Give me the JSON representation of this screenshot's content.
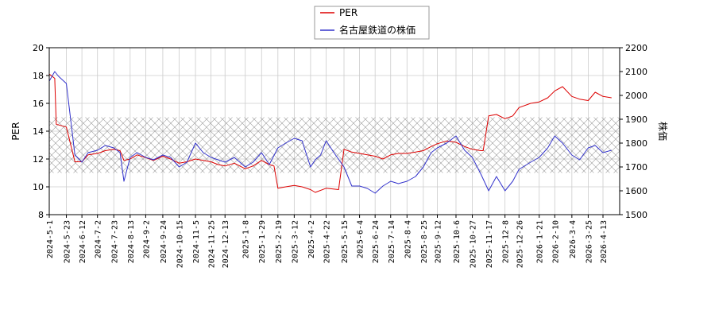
{
  "chart_data": {
    "type": "line",
    "ylabel_left": "PER",
    "ylabel_right": "株価",
    "ylim_left": [
      8,
      20
    ],
    "yticks_left": [
      8,
      10,
      12,
      14,
      16,
      18,
      20
    ],
    "ylim_right": [
      1500,
      2200
    ],
    "yticks_right": [
      1500,
      1600,
      1700,
      1800,
      1900,
      2000,
      2100,
      2200
    ],
    "xticks": [
      "2024-5-1",
      "2024-5-23",
      "2024-6-12",
      "2024-7-2",
      "2024-7-23",
      "2024-8-13",
      "2024-9-2",
      "2024-9-24",
      "2024-10-15",
      "2024-11-5",
      "2024-11-25",
      "2024-12-13",
      "2025-1-8",
      "2025-1-29",
      "2025-2-19",
      "2025-3-12",
      "2025-4-2",
      "2025-4-22",
      "2025-5-15",
      "2025-6-4",
      "2025-6-24",
      "2025-7-14",
      "2025-8-4",
      "2025-8-25",
      "2025-9-12",
      "2025-10-6",
      "2025-10-27",
      "2025-11-17",
      "2025-12-8",
      "2025-12-26",
      "2026-1-21",
      "2026-2-10",
      "2026-3-4",
      "2026-3-25",
      "2026-4-13"
    ],
    "grid": true,
    "hatched_band_left": [
      11,
      15
    ],
    "legend": {
      "placement": "top-center"
    },
    "series": [
      {
        "name": "PER",
        "color": "#dd0000",
        "axis": "left",
        "x": [
          "2024-5-1",
          "2024-5-8",
          "2024-5-10",
          "2024-5-23",
          "2024-6-3",
          "2024-6-12",
          "2024-6-20",
          "2024-7-2",
          "2024-7-12",
          "2024-7-23",
          "2024-7-31",
          "2024-8-5",
          "2024-8-13",
          "2024-8-22",
          "2024-9-2",
          "2024-9-12",
          "2024-9-24",
          "2024-10-4",
          "2024-10-15",
          "2024-10-25",
          "2024-11-5",
          "2024-11-15",
          "2024-11-25",
          "2024-12-4",
          "2024-12-13",
          "2024-12-25",
          "2025-1-8",
          "2025-1-18",
          "2025-1-29",
          "2025-2-8",
          "2025-2-14",
          "2025-2-19",
          "2025-3-1",
          "2025-3-12",
          "2025-3-22",
          "2025-4-2",
          "2025-4-8",
          "2025-4-22",
          "2025-5-8",
          "2025-5-15",
          "2025-5-25",
          "2025-6-4",
          "2025-6-24",
          "2025-7-4",
          "2025-7-14",
          "2025-7-24",
          "2025-8-4",
          "2025-8-15",
          "2025-8-25",
          "2025-9-4",
          "2025-9-12",
          "2025-9-24",
          "2025-10-6",
          "2025-10-17",
          "2025-10-27",
          "2025-11-7",
          "2025-11-10",
          "2025-11-17",
          "2025-11-27",
          "2025-12-8",
          "2025-12-18",
          "2025-12-26",
          "2026-1-10",
          "2026-1-21",
          "2026-2-1",
          "2026-2-10",
          "2026-2-20",
          "2026-3-4",
          "2026-3-14",
          "2026-3-25",
          "2026-4-3",
          "2026-4-13",
          "2026-4-24"
        ],
        "values": [
          18.1,
          17.8,
          14.5,
          14.3,
          11.8,
          11.8,
          12.3,
          12.4,
          12.6,
          12.7,
          12.6,
          11.9,
          12.0,
          12.3,
          12.1,
          11.9,
          12.2,
          12.0,
          11.7,
          11.8,
          12.0,
          11.9,
          11.8,
          11.6,
          11.5,
          11.7,
          11.3,
          11.5,
          11.9,
          11.6,
          11.5,
          9.9,
          10.0,
          10.1,
          10.0,
          9.8,
          9.6,
          9.9,
          9.8,
          12.7,
          12.5,
          12.4,
          12.2,
          12.0,
          12.3,
          12.4,
          12.4,
          12.5,
          12.6,
          12.9,
          13.1,
          13.3,
          13.2,
          12.9,
          12.7,
          12.6,
          12.6,
          15.1,
          15.2,
          14.9,
          15.1,
          15.7,
          16.0,
          16.1,
          16.4,
          16.9,
          17.2,
          16.5,
          16.3,
          16.2,
          16.8,
          16.5,
          16.4
        ]
      },
      {
        "name": "名古屋鉄道の株価",
        "color": "#3333cc",
        "axis": "right",
        "x": [
          "2024-5-1",
          "2024-5-8",
          "2024-5-13",
          "2024-5-23",
          "2024-6-3",
          "2024-6-12",
          "2024-6-20",
          "2024-7-2",
          "2024-7-12",
          "2024-7-23",
          "2024-7-31",
          "2024-8-5",
          "2024-8-13",
          "2024-8-22",
          "2024-9-2",
          "2024-9-12",
          "2024-9-24",
          "2024-10-4",
          "2024-10-15",
          "2024-10-25",
          "2024-11-5",
          "2024-11-15",
          "2024-11-25",
          "2024-12-4",
          "2024-12-13",
          "2024-12-25",
          "2025-1-8",
          "2025-1-18",
          "2025-1-29",
          "2025-2-8",
          "2025-2-19",
          "2025-3-1",
          "2025-3-12",
          "2025-3-22",
          "2025-4-2",
          "2025-4-8",
          "2025-4-15",
          "2025-4-22",
          "2025-5-2",
          "2025-5-15",
          "2025-5-25",
          "2025-6-4",
          "2025-6-14",
          "2025-6-24",
          "2025-7-4",
          "2025-7-14",
          "2025-7-24",
          "2025-8-4",
          "2025-8-15",
          "2025-8-25",
          "2025-9-4",
          "2025-9-12",
          "2025-9-24",
          "2025-10-6",
          "2025-10-17",
          "2025-10-27",
          "2025-11-7",
          "2025-11-17",
          "2025-11-27",
          "2025-12-8",
          "2025-12-18",
          "2025-12-26",
          "2026-1-10",
          "2026-1-21",
          "2026-2-1",
          "2026-2-10",
          "2026-2-20",
          "2026-3-4",
          "2026-3-14",
          "2026-3-25",
          "2026-4-3",
          "2026-4-13",
          "2026-4-24"
        ],
        "values": [
          2060,
          2100,
          2080,
          2050,
          1750,
          1720,
          1760,
          1770,
          1790,
          1780,
          1760,
          1640,
          1740,
          1760,
          1740,
          1730,
          1750,
          1740,
          1700,
          1720,
          1800,
          1760,
          1740,
          1730,
          1720,
          1740,
          1700,
          1720,
          1760,
          1710,
          1780,
          1800,
          1820,
          1810,
          1700,
          1730,
          1750,
          1810,
          1760,
          1700,
          1620,
          1620,
          1610,
          1590,
          1620,
          1640,
          1630,
          1640,
          1660,
          1700,
          1760,
          1780,
          1800,
          1830,
          1770,
          1740,
          1670,
          1600,
          1660,
          1600,
          1640,
          1690,
          1720,
          1740,
          1780,
          1830,
          1800,
          1750,
          1730,
          1780,
          1790,
          1760,
          1770
        ]
      }
    ]
  }
}
